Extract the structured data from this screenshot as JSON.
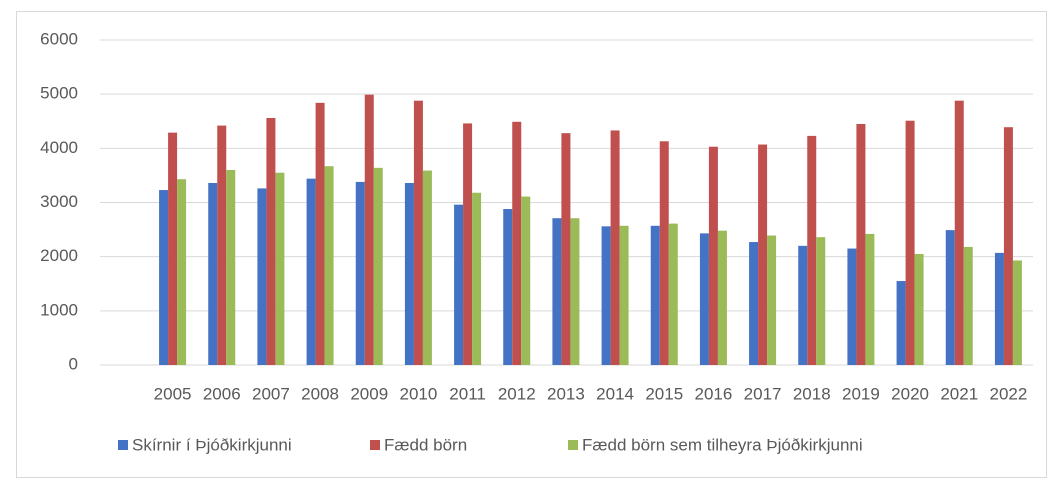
{
  "chart_data": {
    "type": "bar",
    "categories": [
      "2005",
      "2006",
      "2007",
      "2008",
      "2009",
      "2010",
      "2011",
      "2012",
      "2013",
      "2014",
      "2015",
      "2016",
      "2017",
      "2018",
      "2019",
      "2020",
      "2021",
      "2022"
    ],
    "series": [
      {
        "name": "Skírnir í Þjóðkirkjunni",
        "color": "#4472c4",
        "values": [
          3230,
          3360,
          3260,
          3440,
          3380,
          3360,
          2960,
          2880,
          2710,
          2560,
          2570,
          2430,
          2270,
          2200,
          2150,
          1550,
          2490,
          2070
        ]
      },
      {
        "name": "Fædd börn",
        "color": "#c0504d",
        "values": [
          4290,
          4420,
          4560,
          4840,
          4990,
          4880,
          4460,
          4490,
          4280,
          4330,
          4130,
          4030,
          4070,
          4230,
          4450,
          4510,
          4880,
          4390
        ]
      },
      {
        "name": "Fædd börn sem tilheyra Þjóðkirkjunni",
        "color": "#9bbb59",
        "values": [
          3430,
          3600,
          3550,
          3670,
          3640,
          3590,
          3180,
          3110,
          2710,
          2570,
          2610,
          2480,
          2390,
          2360,
          2420,
          2050,
          2180,
          1930
        ]
      }
    ],
    "ylim": [
      0,
      6000
    ],
    "yticks": [
      0,
      1000,
      2000,
      3000,
      4000,
      5000,
      6000
    ],
    "grid": true,
    "legend": "bottom"
  }
}
